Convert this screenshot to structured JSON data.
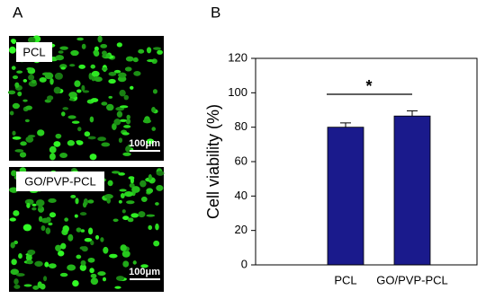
{
  "panel_a": {
    "label": "A",
    "images": [
      {
        "label": "PCL",
        "scale_bar": "100μm"
      },
      {
        "label": "GO/PVP-PCL",
        "scale_bar": "100μm"
      }
    ]
  },
  "chart_data": {
    "type": "bar",
    "panel_label": "B",
    "y_label": "Cell viability (%)",
    "categories": [
      "PCL",
      "GO/PVP-PCL"
    ],
    "values": [
      80,
      86.5
    ],
    "errors": [
      2.5,
      3
    ],
    "color": "#1a1a8c",
    "ylim": [
      0,
      120
    ],
    "yticks": [
      0,
      20,
      40,
      60,
      80,
      100,
      120
    ],
    "annotation": "*"
  }
}
